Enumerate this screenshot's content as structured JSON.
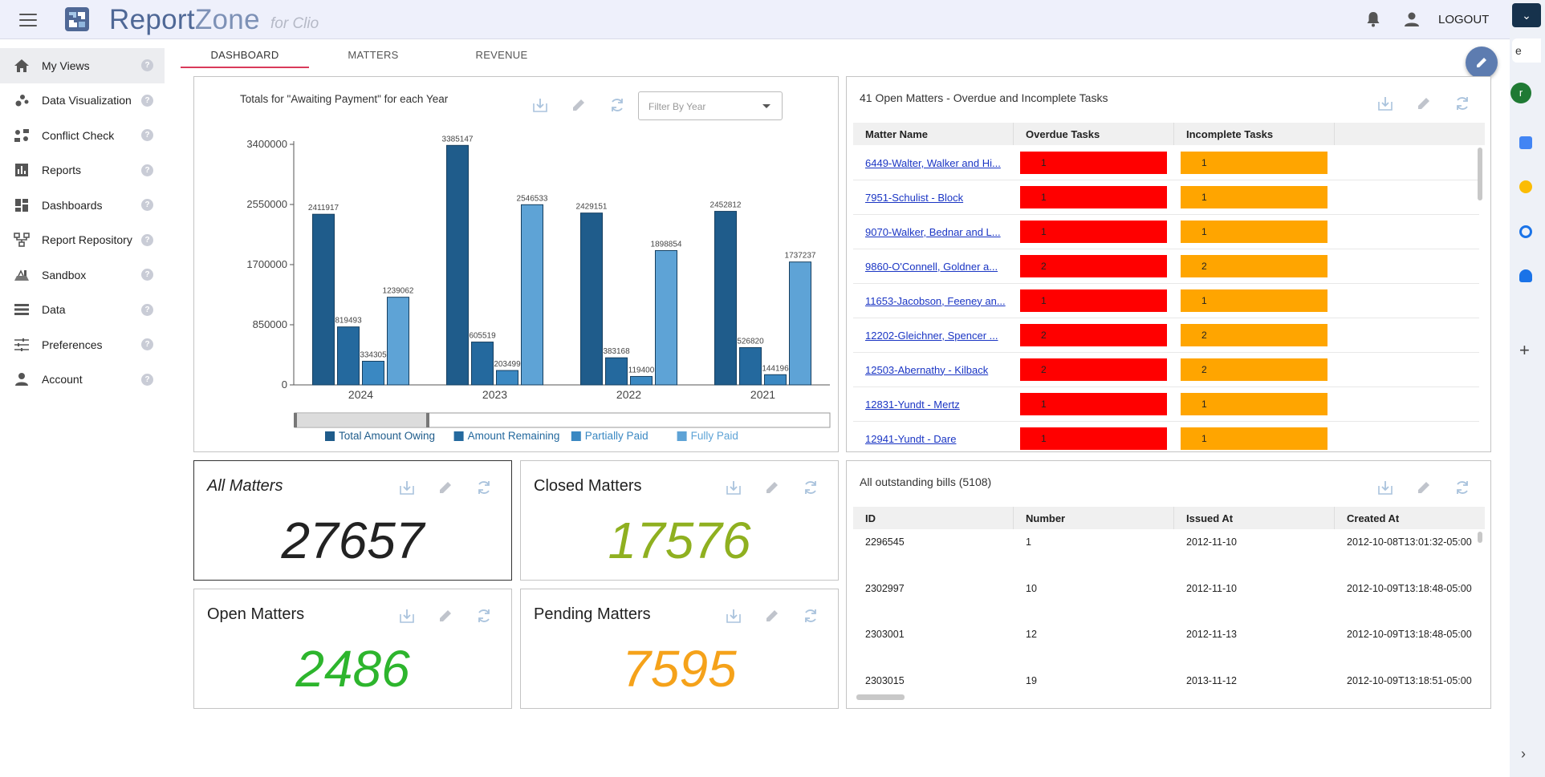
{
  "header": {
    "logo_main": "Report",
    "logo_zone": "Zone",
    "logo_sub": "for Clio",
    "logout_label": "LOGOUT"
  },
  "sidebar": {
    "items": [
      {
        "label": "My Views",
        "icon": "home-icon",
        "active": true
      },
      {
        "label": "Data Visualization",
        "icon": "scatter-icon"
      },
      {
        "label": "Conflict Check",
        "icon": "conflict-icon"
      },
      {
        "label": "Reports",
        "icon": "bar-chart-icon"
      },
      {
        "label": "Dashboards",
        "icon": "dashboard-icon"
      },
      {
        "label": "Report Repository",
        "icon": "repository-icon"
      },
      {
        "label": "Sandbox",
        "icon": "sandbox-icon"
      },
      {
        "label": "Data",
        "icon": "list-icon"
      },
      {
        "label": "Preferences",
        "icon": "sliders-icon"
      },
      {
        "label": "Account",
        "icon": "person-icon"
      }
    ],
    "help_glyph": "?"
  },
  "tabs": [
    "DASHBOARD",
    "MATTERS",
    "REVENUE"
  ],
  "chart_panel": {
    "title": "Totals for \"Awaiting Payment\" for each Year",
    "filter_placeholder": "Filter By Year"
  },
  "chart_data": {
    "type": "bar",
    "title": "Totals for \"Awaiting Payment\" for each Year",
    "categories": [
      "2024",
      "2023",
      "2022",
      "2021"
    ],
    "series": [
      {
        "name": "Total Amount Owing",
        "color": "#1f5c8b",
        "values": [
          2411917,
          3385147,
          2429151,
          2452812
        ]
      },
      {
        "name": "Amount Remaining",
        "color": "#24699e",
        "values": [
          819493,
          605519,
          383168,
          526820
        ]
      },
      {
        "name": "Partially Paid",
        "color": "#3a88c2",
        "values": [
          334305,
          203499,
          119400,
          144196
        ]
      },
      {
        "name": "Fully Paid",
        "color": "#5ea3d6",
        "values": [
          1239062,
          2546533,
          1898854,
          1737237
        ]
      }
    ],
    "yticks": [
      "3400000",
      "2550000",
      "1700000",
      "850000",
      "0"
    ],
    "ylim": [
      0,
      3400000
    ],
    "legend": "bottom"
  },
  "stats": {
    "all": {
      "title": "All Matters",
      "value": "27657",
      "color": "#222222"
    },
    "closed": {
      "title": "Closed Matters",
      "value": "17576",
      "color": "#8fb020"
    },
    "open": {
      "title": "Open Matters",
      "value": "2486",
      "color": "#2db52d"
    },
    "pending": {
      "title": "Pending Matters",
      "value": "7595",
      "color": "#f5a21a"
    }
  },
  "overdue_panel": {
    "title": "41 Open Matters - Overdue and Incomplete Tasks",
    "columns": [
      "Matter Name",
      "Overdue Tasks",
      "Incomplete Tasks"
    ],
    "rows": [
      {
        "name": "6449-Walter, Walker and Hi...",
        "overdue": "1",
        "incomplete": "1"
      },
      {
        "name": "7951-Schulist - Block",
        "overdue": "1",
        "incomplete": "1"
      },
      {
        "name": "9070-Walker, Bednar and L...",
        "overdue": "1",
        "incomplete": "1"
      },
      {
        "name": "9860-O'Connell, Goldner a...",
        "overdue": "2",
        "incomplete": "2"
      },
      {
        "name": "11653-Jacobson, Feeney an...",
        "overdue": "1",
        "incomplete": "1"
      },
      {
        "name": "12202-Gleichner, Spencer ...",
        "overdue": "2",
        "incomplete": "2"
      },
      {
        "name": "12503-Abernathy - Kilback",
        "overdue": "2",
        "incomplete": "2"
      },
      {
        "name": "12831-Yundt - Mertz",
        "overdue": "1",
        "incomplete": "1"
      },
      {
        "name": "12941-Yundt - Dare",
        "overdue": "1",
        "incomplete": "1"
      }
    ],
    "overdue_color": "#ff0000",
    "incomplete_color": "#ffa500"
  },
  "bills_panel": {
    "title": "All outstanding bills (5108)",
    "columns": [
      "ID",
      "Number",
      "Issued At",
      "Created At"
    ],
    "rows": [
      {
        "id": "2296545",
        "number": "1",
        "issued": "2012-11-10",
        "created": "2012-10-08T13:01:32-05:00"
      },
      {
        "id": "2302997",
        "number": "10",
        "issued": "2012-11-10",
        "created": "2012-10-09T13:18:48-05:00"
      },
      {
        "id": "2303001",
        "number": "12",
        "issued": "2012-11-13",
        "created": "2012-10-09T13:18:48-05:00"
      },
      {
        "id": "2303015",
        "number": "19",
        "issued": "2013-11-12",
        "created": "2012-10-09T13:18:51-05:00"
      }
    ]
  },
  "browser_strip": {
    "tab_glyph": "e",
    "avatar_letter": "r",
    "plus": "+",
    "arrow": "›",
    "chevron": "⌄"
  }
}
